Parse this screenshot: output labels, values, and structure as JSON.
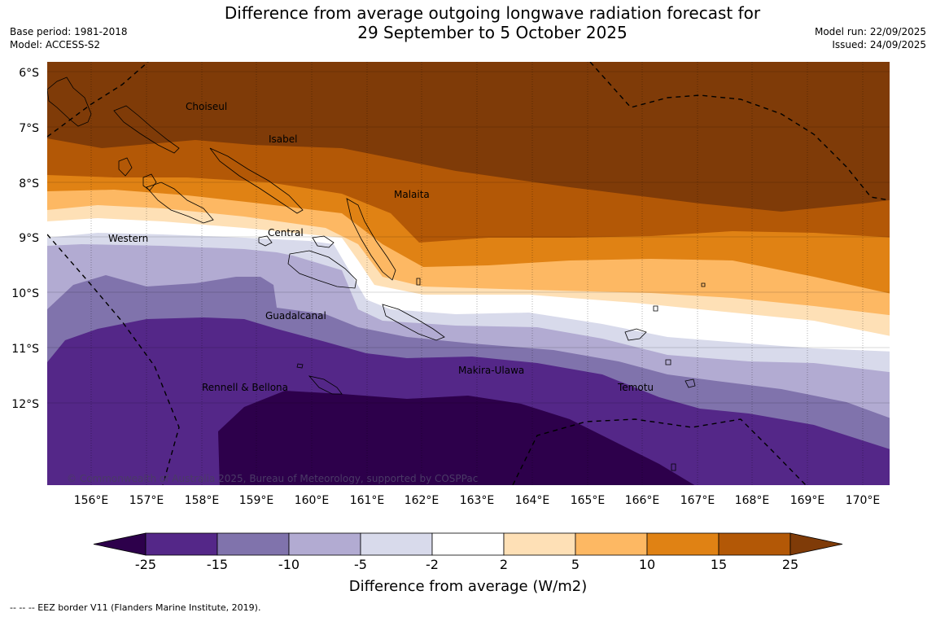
{
  "header": {
    "title_line1": "Difference from average outgoing longwave radiation forecast for",
    "title_line2": "29 September to 5 October 2025",
    "base_period": "Base period: 1981-2018",
    "model": "Model: ACCESS-S2",
    "model_run": "Model run: 22/09/2025",
    "issued": "Issued: 24/09/2025"
  },
  "map": {
    "lat_labels": [
      "6°S",
      "7°S",
      "8°S",
      "9°S",
      "10°S",
      "11°S",
      "12°S"
    ],
    "lon_labels": [
      "156°E",
      "157°E",
      "158°E",
      "159°E",
      "160°E",
      "161°E",
      "162°E",
      "163°E",
      "164°E",
      "165°E",
      "166°E",
      "167°E",
      "168°E",
      "169°E",
      "170°E"
    ],
    "regions": {
      "choiseul": "Choiseul",
      "isabel": "Isabel",
      "malaita": "Malaita",
      "western": "Western",
      "central": "Central",
      "guadalcanal": "Guadalcanal",
      "makira_ulawa": "Makira-Ulawa",
      "rennell_bellona": "Rennell & Bellona",
      "temotu": "Temotu"
    },
    "copyright": "© Commonwealth of Australia 2025, Bureau of Meteorology, supported by COSPPac"
  },
  "colorbar": {
    "labels": [
      "-25",
      "-15",
      "-10",
      "-5",
      "-2",
      "2",
      "5",
      "10",
      "15",
      "25"
    ],
    "colors": [
      "#2d004b",
      "#542788",
      "#8073ac",
      "#b2abd2",
      "#d8daeb",
      "#ffffff",
      "#fee0b6",
      "#fdb863",
      "#e08214",
      "#b35806",
      "#7f3b08"
    ],
    "title": "Difference from average (W/m2)"
  },
  "legend": {
    "eez": "--  --  -- EEZ border V11 (Flanders Marine Institute, 2019)."
  }
}
